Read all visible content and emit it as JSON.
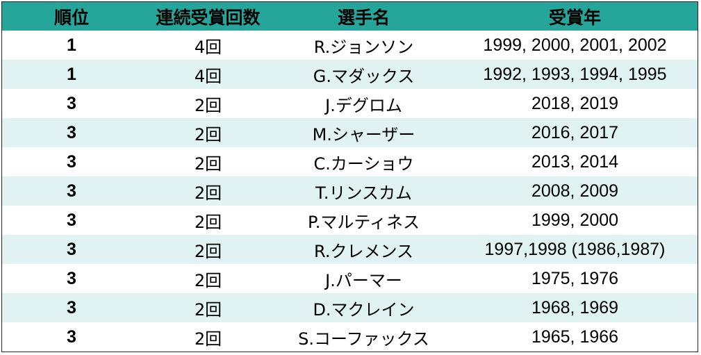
{
  "table": {
    "headers": {
      "rank": "順位",
      "consecutive": "連続受賞回数",
      "player": "選手名",
      "years": "受賞年"
    },
    "rows": [
      {
        "rank": "1",
        "count": "4回",
        "name": "R.ジョンソン",
        "years": "1999, 2000, 2001, 2002"
      },
      {
        "rank": "1",
        "count": "4回",
        "name": "G.マダックス",
        "years": "1992, 1993, 1994, 1995"
      },
      {
        "rank": "3",
        "count": "2回",
        "name": "J.デグロム",
        "years": "2018, 2019"
      },
      {
        "rank": "3",
        "count": "2回",
        "name": "M.シャーザー",
        "years": "2016, 2017"
      },
      {
        "rank": "3",
        "count": "2回",
        "name": "C.カーショウ",
        "years": "2013, 2014"
      },
      {
        "rank": "3",
        "count": "2回",
        "name": "T.リンスカム",
        "years": "2008, 2009"
      },
      {
        "rank": "3",
        "count": "2回",
        "name": "P.マルティネス",
        "years": "1999, 2000"
      },
      {
        "rank": "3",
        "count": "2回",
        "name": "R.クレメンス",
        "years": "1997,1998 (1986,1987)"
      },
      {
        "rank": "3",
        "count": "2回",
        "name": "J.パーマー",
        "years": "1975, 1976"
      },
      {
        "rank": "3",
        "count": "2回",
        "name": "D.マクレイン",
        "years": "1968, 1969"
      },
      {
        "rank": "3",
        "count": "2回",
        "name": "S.コーファックス",
        "years": "1965, 1966"
      }
    ]
  },
  "colors": {
    "header_bg": "#26a69a",
    "stripe_bg": "#e0f2f1",
    "row_bg": "#ffffff"
  }
}
